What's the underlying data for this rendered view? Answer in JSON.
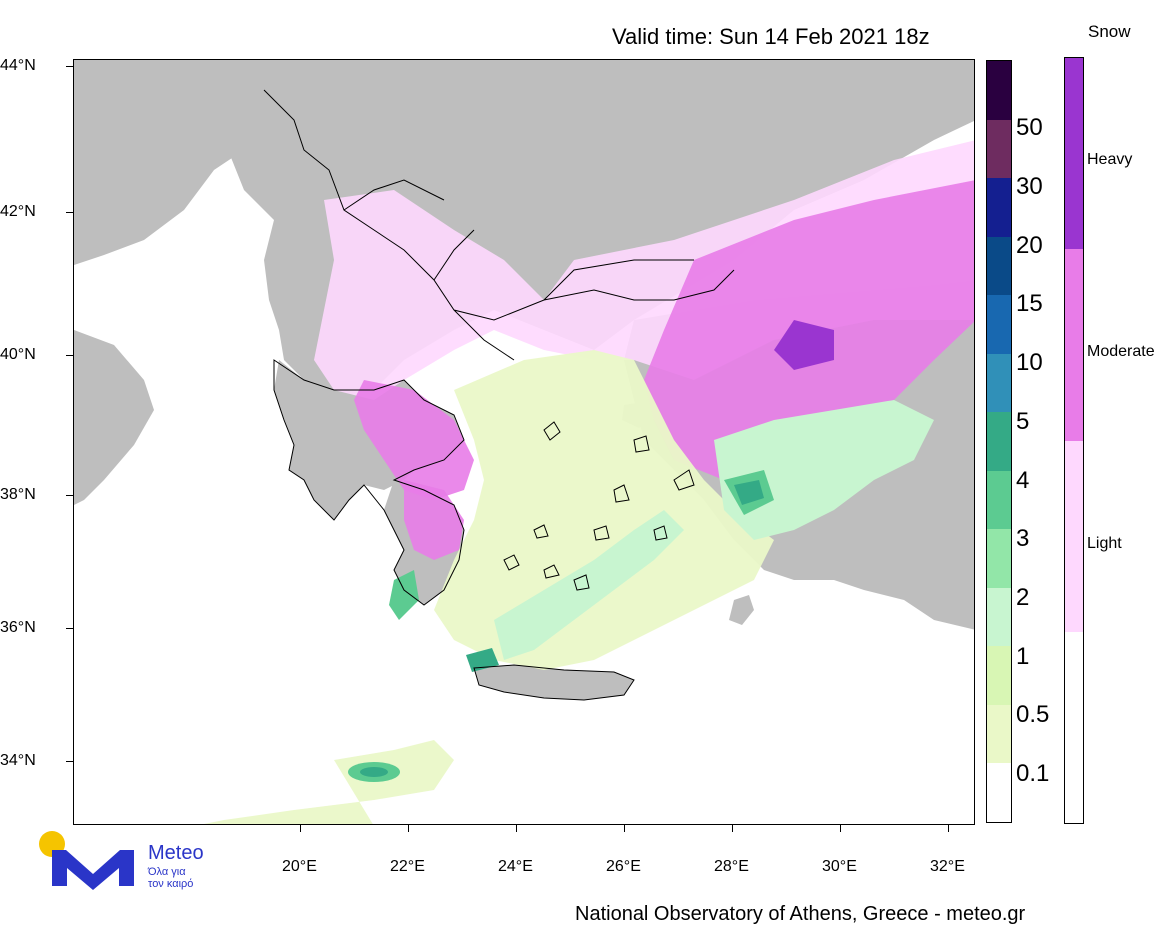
{
  "title": "Valid time: Sun 14 Feb 2021 18z",
  "latitude_labels": [
    "44°N",
    "42°N",
    "40°N",
    "38°N",
    "36°N",
    "34°N"
  ],
  "longitude_labels": [
    "20°E",
    "22°E",
    "24°E",
    "26°E",
    "28°E",
    "30°E",
    "32°E"
  ],
  "precip_legend": {
    "values": [
      "0.1",
      "0.5",
      "1",
      "2",
      "3",
      "4",
      "5",
      "10",
      "15",
      "20",
      "30",
      "50"
    ],
    "colors": [
      "#ffffff",
      "#eaf8c8",
      "#d8f6b4",
      "#c8f5d0",
      "#92e6a8",
      "#5ccb91",
      "#34aa86",
      "#3090b8",
      "#1868b0",
      "#0a4a88",
      "#141f90",
      "#6e2c60",
      "#2a0040"
    ]
  },
  "snow_legend": {
    "title": "Snow",
    "levels": [
      "Heavy",
      "Moderate",
      "Light"
    ],
    "colors": [
      "#9a35d0",
      "#e87ce8",
      "#fed8fe",
      "#ffffff"
    ]
  },
  "logo": {
    "name": "Meteo",
    "tagline_line1": "Όλα για",
    "tagline_line2": "τον καιρό"
  },
  "footer": "National Observatory of Athens, Greece - meteo.gr",
  "map_colors": {
    "land": "#bebebe",
    "sea": "#ffffff",
    "border": "#000000"
  }
}
